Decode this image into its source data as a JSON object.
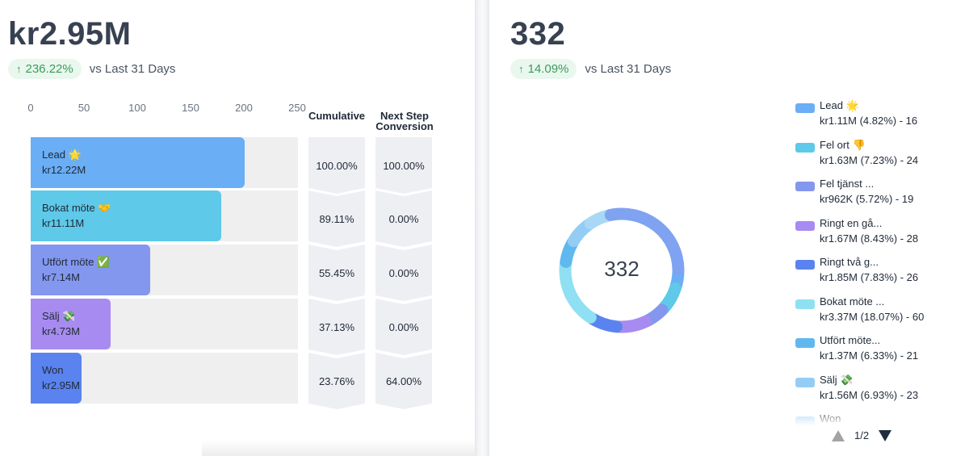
{
  "left": {
    "total_value": "kr2.95M",
    "delta": "236.22%",
    "delta_arrow": "↑",
    "compare_text": "vs Last 31 Days",
    "axis_ticks": [
      "0",
      "50",
      "100",
      "150",
      "200",
      "250"
    ],
    "col_cumulative": "Cumulative",
    "col_next_step": "Next Step Conversion",
    "stages": [
      {
        "name": "Lead 🌟",
        "value": "kr12.22M",
        "cumulative": "100.00%",
        "next_step": "100.00%",
        "count": 201,
        "color": "#6aaef5"
      },
      {
        "name": "Bokat möte 🤝",
        "value": "kr11.11M",
        "cumulative": "89.11%",
        "next_step": "0.00%",
        "count": 179,
        "color": "#5ec9e8"
      },
      {
        "name": "Utfört möte ✅",
        "value": "kr7.14M",
        "cumulative": "55.45%",
        "next_step": "0.00%",
        "count": 112,
        "color": "#8497ee"
      },
      {
        "name": "Sälj 💸",
        "value": "kr4.73M",
        "cumulative": "37.13%",
        "next_step": "0.00%",
        "count": 75,
        "color": "#a78bf0"
      },
      {
        "name": "Won",
        "value": "kr2.95M",
        "cumulative": "23.76%",
        "next_step": "64.00%",
        "count": 48,
        "color": "#5b83ef"
      }
    ]
  },
  "right": {
    "total_value": "332",
    "delta": "14.09%",
    "delta_arrow": "↑",
    "compare_text": "vs Last 31 Days",
    "donut_center": "332",
    "legend": [
      {
        "name": "Lead 🌟",
        "detail": "kr1.11M (4.82%) - 16",
        "color": "#6aaef5"
      },
      {
        "name": "Fel ort 👎",
        "detail": "kr1.63M (7.23%) - 24",
        "color": "#5ec9e8"
      },
      {
        "name": "Fel tjänst ...",
        "detail": "kr962K (5.72%) - 19",
        "color": "#8497ee"
      },
      {
        "name": "Ringt en gå...",
        "detail": "kr1.67M (8.43%) - 28",
        "color": "#a78bf0"
      },
      {
        "name": "Ringt två g...",
        "detail": "kr1.85M (7.83%) - 26",
        "color": "#5b83ef"
      },
      {
        "name": "Bokat möte ...",
        "detail": "kr3.37M (18.07%) - 60",
        "color": "#8fe0f2"
      },
      {
        "name": "Utfört möte...",
        "detail": "kr1.37M (6.33%) - 21",
        "color": "#60b8ee"
      },
      {
        "name": "Sälj 💸",
        "detail": "kr1.56M (6.93%) - 23",
        "color": "#93cdf5"
      },
      {
        "name": "Won",
        "detail": "",
        "color": "#a9d8f7"
      }
    ],
    "donut_segments": [
      {
        "pct": 4.82,
        "color": "#6aaef5"
      },
      {
        "pct": 7.23,
        "color": "#5ec9e8"
      },
      {
        "pct": 5.72,
        "color": "#8497ee"
      },
      {
        "pct": 8.43,
        "color": "#a78bf0"
      },
      {
        "pct": 7.83,
        "color": "#5b83ef"
      },
      {
        "pct": 18.07,
        "color": "#8fe0f2"
      },
      {
        "pct": 6.33,
        "color": "#60b8ee"
      },
      {
        "pct": 6.93,
        "color": "#93cdf5"
      },
      {
        "pct": 6.2,
        "color": "#a9d8f7"
      },
      {
        "pct": 28.44,
        "color": "#7fa3f0"
      }
    ],
    "pager": "1/2"
  }
}
